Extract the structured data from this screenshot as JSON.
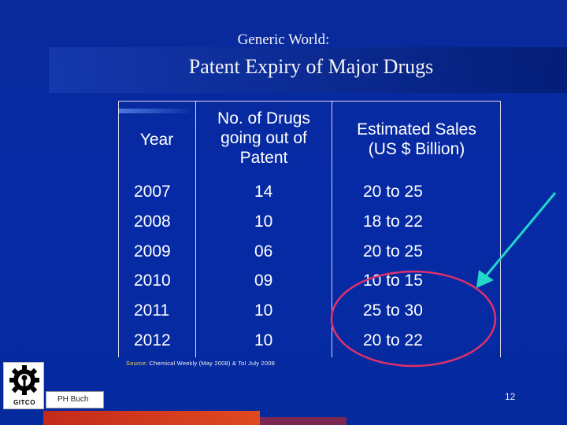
{
  "slide": {
    "title_line1": "Generic World:",
    "title_line2": "Patent Expiry of Major Drugs",
    "page_number": "12"
  },
  "table": {
    "headers": {
      "year": "Year",
      "drugs": [
        "No. of Drugs",
        "going out of",
        "Patent"
      ],
      "sales": [
        "Estimated Sales",
        "(US $ Billion)"
      ]
    },
    "rows": [
      {
        "year": "2007",
        "drugs": "14",
        "sales": "20 to 25"
      },
      {
        "year": "2008",
        "drugs": "10",
        "sales": "18 to 22"
      },
      {
        "year": "2009",
        "drugs": "06",
        "sales": "20 to 25"
      },
      {
        "year": "2010",
        "drugs": "09",
        "sales": "10 to 15"
      },
      {
        "year": "2011",
        "drugs": "10",
        "sales": "25 to 30"
      },
      {
        "year": "2012",
        "drugs": "10",
        "sales": "20 to 22"
      }
    ]
  },
  "source": {
    "label": "Source:",
    "text": " Chemical Weekly (May 2008) & ToI July 2008"
  },
  "footer": {
    "logo_text": "GITCO",
    "author": "PH Buch"
  },
  "annotations": {
    "arrow_color": "#22d6c8",
    "ellipse_color": "#e0306a"
  }
}
